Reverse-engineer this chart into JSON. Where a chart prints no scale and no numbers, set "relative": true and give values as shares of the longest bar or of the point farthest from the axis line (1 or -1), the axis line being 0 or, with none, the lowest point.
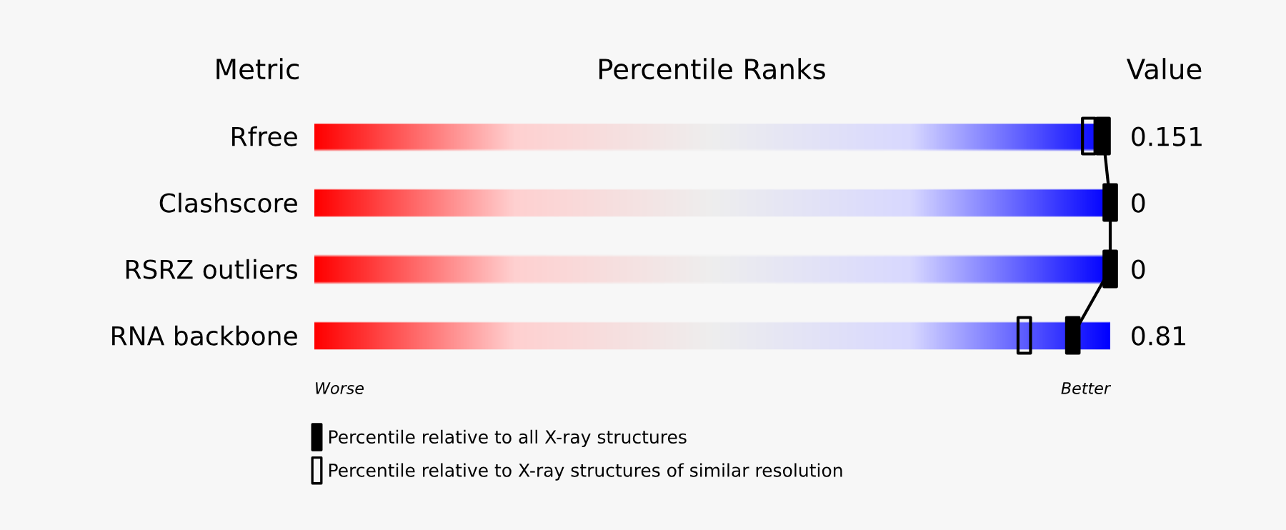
{
  "chart_data": {
    "type": "scatter",
    "orientation": "horizontal",
    "relative": true,
    "title": "Percentile Ranks",
    "ylabel": "Metric",
    "y2label": "Value",
    "categories": [
      "Rfree",
      "Clashscore",
      "RSRZ outliers",
      "RNA backbone"
    ],
    "y2_categories": [
      "0.151",
      "0",
      "0",
      "0.81"
    ],
    "series": [
      {
        "name": "Percentile relative to all X-ray structures",
        "type": "line",
        "color": "#000000",
        "values": [
          0.991,
          1.0,
          1.0,
          0.953
        ]
      },
      {
        "name": "Percentile relative to X-ray structures of similar resolution",
        "color": "#000000",
        "values": [
          0.973,
          null,
          null,
          0.892
        ]
      }
    ],
    "annotations": [
      "Worse",
      "Better"
    ],
    "marker": "square",
    "legend": "bottom",
    "tick_labels": "y",
    "grid": false
  }
}
